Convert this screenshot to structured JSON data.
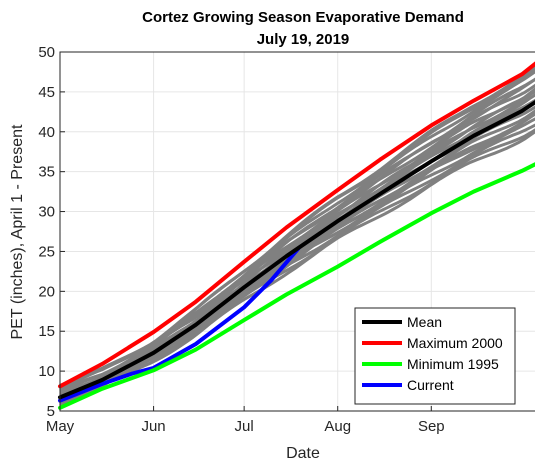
{
  "chart_data": {
    "type": "line",
    "title": "Cortez Growing Season Evaporative Demand",
    "subtitle": "July 19, 2019",
    "xlabel": "Date",
    "ylabel": "PET (inches), April 1 - Present",
    "x_tick_labels": [
      "May",
      "Jun",
      "Jul",
      "Aug",
      "Sep"
    ],
    "y_ticks": [
      5,
      10,
      15,
      20,
      25,
      30,
      35,
      40,
      45,
      50
    ],
    "ylim": [
      5,
      50
    ],
    "xlim": [
      "May 1",
      "Oct 9"
    ],
    "grid": true,
    "legend_position": "bottom-right",
    "historical_years": {
      "color": "#808080",
      "description_hidden": true,
      "end_values": [
        49.0,
        48.3,
        47.6,
        47.0,
        46.4,
        45.9,
        45.3,
        44.8,
        44.2,
        43.7,
        43.2,
        42.8,
        42.3,
        41.8,
        41.3,
        40.9,
        48.6,
        47.3,
        46.0,
        45.0
      ],
      "start_values": [
        7.6,
        7.3,
        7.1,
        6.9,
        6.8,
        6.6,
        6.4,
        6.3,
        6.1,
        6.0,
        5.9,
        7.4,
        7.0,
        6.7,
        6.5,
        6.2,
        7.8,
        7.2,
        6.8,
        6.4
      ]
    },
    "series": [
      {
        "name": "Mean",
        "color": "#000000",
        "points": [
          [
            "May 1",
            6.7
          ],
          [
            "May 15",
            8.9
          ],
          [
            "Jun 1",
            12.3
          ],
          [
            "Jun 15",
            15.8
          ],
          [
            "Jul 1",
            20.5
          ],
          [
            "Jul 15",
            24.4
          ],
          [
            "Aug 1",
            28.8
          ],
          [
            "Aug 15",
            32.2
          ],
          [
            "Sep 1",
            36.3
          ],
          [
            "Sep 15",
            39.5
          ],
          [
            "Oct 1",
            42.6
          ],
          [
            "Oct 9",
            44.6
          ]
        ]
      },
      {
        "name": "Maximum 2000",
        "color": "#ff0000",
        "points": [
          [
            "May 1",
            8.1
          ],
          [
            "May 15",
            10.9
          ],
          [
            "Jun 1",
            14.9
          ],
          [
            "Jun 15",
            18.7
          ],
          [
            "Jul 1",
            23.7
          ],
          [
            "Jul 15",
            28.0
          ],
          [
            "Aug 1",
            32.7
          ],
          [
            "Aug 15",
            36.5
          ],
          [
            "Sep 1",
            40.8
          ],
          [
            "Sep 15",
            43.9
          ],
          [
            "Oct 1",
            47.2
          ],
          [
            "Oct 9",
            49.6
          ]
        ]
      },
      {
        "name": "Minimum 1995",
        "color": "#00ff00",
        "points": [
          [
            "May 1",
            5.4
          ],
          [
            "May 15",
            7.8
          ],
          [
            "Jun 1",
            10.1
          ],
          [
            "Jun 15",
            12.7
          ],
          [
            "Jul 1",
            16.4
          ],
          [
            "Jul 15",
            19.6
          ],
          [
            "Aug 1",
            23.1
          ],
          [
            "Aug 15",
            26.2
          ],
          [
            "Sep 1",
            29.8
          ],
          [
            "Sep 15",
            32.5
          ],
          [
            "Oct 1",
            35.1
          ],
          [
            "Oct 9",
            36.6
          ]
        ]
      },
      {
        "name": "Current",
        "color": "#0000ff",
        "points": [
          [
            "May 1",
            6.3
          ],
          [
            "May 15",
            8.4
          ],
          [
            "May 25",
            9.7
          ],
          [
            "Jun 1",
            10.4
          ],
          [
            "Jun 15",
            13.4
          ],
          [
            "Jul 1",
            18.0
          ],
          [
            "Jul 10",
            21.4
          ],
          [
            "Jul 19",
            25.4
          ]
        ]
      }
    ]
  }
}
